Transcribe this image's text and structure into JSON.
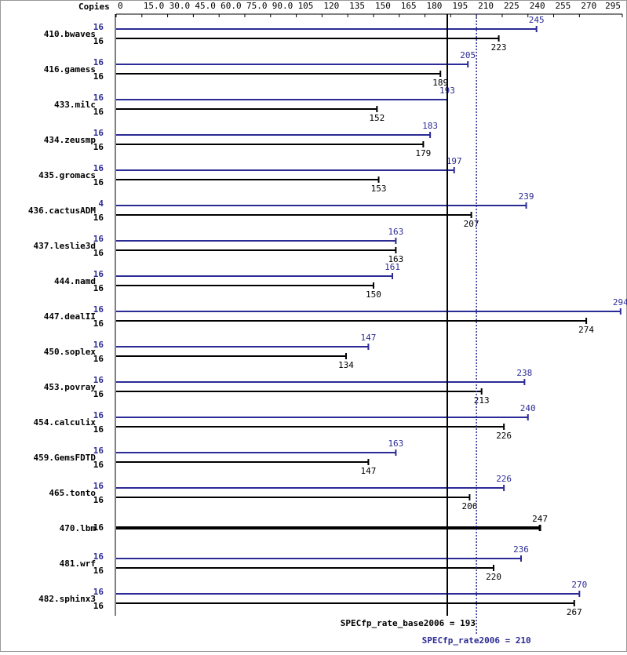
{
  "chart_data": {
    "type": "spec-bar",
    "copies_header": "Copies",
    "xlim": [
      0,
      295
    ],
    "xticks": [
      0,
      {
        "value": 15,
        "label": "15.0"
      },
      {
        "value": 30,
        "label": "30.0"
      },
      {
        "value": 45,
        "label": "45.0"
      },
      {
        "value": 60,
        "label": "60.0"
      },
      {
        "value": 75,
        "label": "75.0"
      },
      {
        "value": 90,
        "label": "90.0"
      },
      105,
      120,
      135,
      150,
      165,
      180,
      195,
      210,
      225,
      240,
      255,
      270,
      295
    ],
    "peak_color": "#2b2b96",
    "base_color": "#000000",
    "benchmarks": [
      {
        "name": "410.bwaves",
        "peak_copies": 16,
        "peak": 245,
        "base_copies": 16,
        "base": 223
      },
      {
        "name": "416.gamess",
        "peak_copies": 16,
        "peak": 205,
        "base_copies": 16,
        "base": 189
      },
      {
        "name": "433.milc",
        "peak_copies": 16,
        "peak": 193,
        "base_copies": 16,
        "base": 152
      },
      {
        "name": "434.zeusmp",
        "peak_copies": 16,
        "peak": 183,
        "base_copies": 16,
        "base": 179
      },
      {
        "name": "435.gromacs",
        "peak_copies": 16,
        "peak": 197,
        "base_copies": 16,
        "base": 153
      },
      {
        "name": "436.cactusADM",
        "peak_copies": 4,
        "peak": 239,
        "base_copies": 16,
        "base": 207
      },
      {
        "name": "437.leslie3d",
        "peak_copies": 16,
        "peak": 163,
        "base_copies": 16,
        "base": 163
      },
      {
        "name": "444.namd",
        "peak_copies": 16,
        "peak": 161,
        "base_copies": 16,
        "base": 150
      },
      {
        "name": "447.dealII",
        "peak_copies": 16,
        "peak": 294,
        "base_copies": 16,
        "base": 274
      },
      {
        "name": "450.soplex",
        "peak_copies": 16,
        "peak": 147,
        "base_copies": 16,
        "base": 134
      },
      {
        "name": "453.povray",
        "peak_copies": 16,
        "peak": 238,
        "base_copies": 16,
        "base": 213
      },
      {
        "name": "454.calculix",
        "peak_copies": 16,
        "peak": 240,
        "base_copies": 16,
        "base": 226
      },
      {
        "name": "459.GemsFDTD",
        "peak_copies": 16,
        "peak": 163,
        "base_copies": 16,
        "base": 147
      },
      {
        "name": "465.tonto",
        "peak_copies": 16,
        "peak": 226,
        "base_copies": 16,
        "base": 206
      },
      {
        "name": "470.lbm",
        "peak_copies": null,
        "peak": null,
        "base_copies": 16,
        "base": 247
      },
      {
        "name": "481.wrf",
        "peak_copies": 16,
        "peak": 236,
        "base_copies": 16,
        "base": 220
      },
      {
        "name": "482.sphinx3",
        "peak_copies": 16,
        "peak": 270,
        "base_copies": 16,
        "base": 267
      }
    ],
    "base_mean": 193,
    "base_mean_label": "SPECfp_rate_base2006 = 193",
    "peak_mean": 210,
    "peak_mean_label": "SPECfp_rate2006 = 210"
  }
}
